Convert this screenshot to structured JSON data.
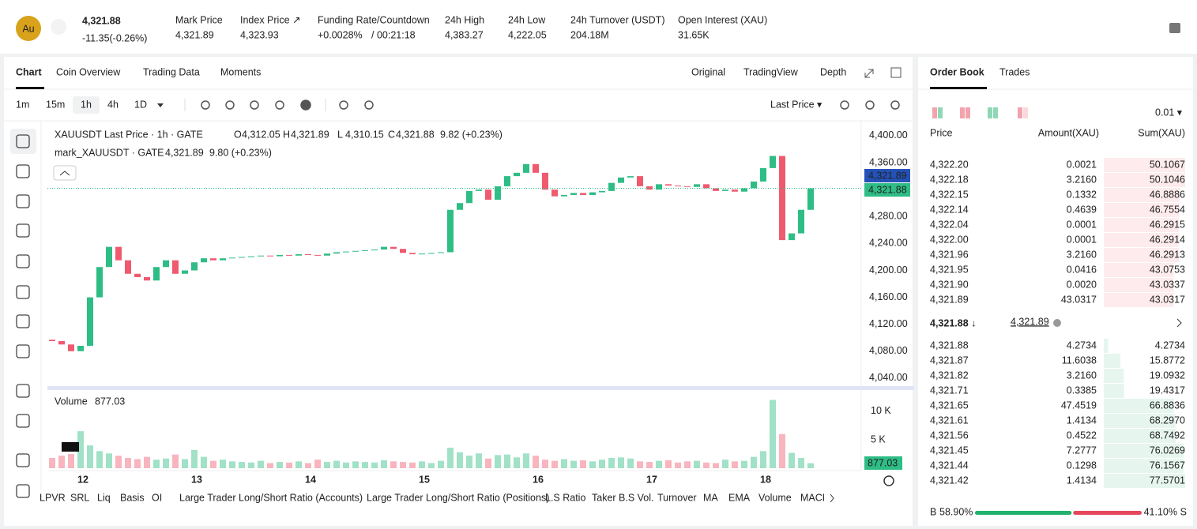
{
  "top_bar": {
    "coin_icon": "Au",
    "price": "4,321.88",
    "change": "-11.35(-0.26%)",
    "stats": [
      {
        "label": "Mark Price",
        "value": "4,321.89"
      },
      {
        "label": "Index Price ↗",
        "value": "4,323.93"
      },
      {
        "label": "Funding Rate/Countdown",
        "value": "+0.0028%",
        "extra": "/ 00:21:18"
      },
      {
        "label": "24h High",
        "value": "4,383.27"
      },
      {
        "label": "24h Low",
        "value": "4,222.05"
      },
      {
        "label": "24h Turnover (USDT)",
        "value": "204.18M"
      },
      {
        "label": "Open Interest (XAU)",
        "value": "31.65K"
      }
    ]
  },
  "chart_tabs": [
    "Chart",
    "Coin Overview",
    "Trading Data",
    "Moments"
  ],
  "chart_views": [
    "Original",
    "TradingView",
    "Depth"
  ],
  "intervals": [
    "1m",
    "15m",
    "1h",
    "4h",
    "1D"
  ],
  "price_source": "Last Price ▾",
  "legend": {
    "title": "XAUUSDT Last Price · 1h · GATE",
    "ohlc": [
      {
        "label": "O",
        "value": "4,312.05"
      },
      {
        "label": "H",
        "value": "4,321.89"
      },
      {
        "label": "L",
        "value": "4,310.15"
      },
      {
        "label": "C",
        "value": "4,321.88"
      }
    ],
    "change": "9.82 (+0.23%)",
    "mark_name": "mark_XAUUSDT · GATE",
    "mark_value": "4,321.89",
    "mark_change": "9.80 (+0.23%)",
    "volume_name": "Volume",
    "volume_value": "877.03"
  },
  "price_tags": {
    "mark": "4,321.89",
    "last": "4,321.88",
    "volume": "877.03"
  },
  "chart_data": {
    "type": "candlestick",
    "x_labels": [
      "12",
      "13",
      "14",
      "15",
      "16",
      "17",
      "18"
    ],
    "open": 4097,
    "close": [
      4095,
      4090,
      4080,
      4088,
      4160,
      4205,
      4235,
      4215,
      4195,
      4190,
      4185,
      4205,
      4215,
      4195,
      4200,
      4212,
      4218,
      4215,
      4218,
      4219,
      4220,
      4221,
      4222,
      4221,
      4223,
      4222,
      4224,
      4223,
      4222,
      4225,
      4227,
      4228,
      4229,
      4230,
      4231,
      4235,
      4232,
      4226,
      4224,
      4225,
      4226,
      4227,
      4290,
      4300,
      4318,
      4320,
      4305,
      4325,
      4340,
      4345,
      4358,
      4345,
      4320,
      4310,
      4312,
      4315,
      4312,
      4316,
      4318,
      4330,
      4338,
      4340,
      4325,
      4320,
      4328,
      4326,
      4325,
      4324,
      4328,
      4322,
      4318,
      4320,
      4317,
      4322,
      4332,
      4352,
      4370,
      4245,
      4255,
      4290,
      4321.88
    ],
    "volume": [
      1800,
      2200,
      2500,
      6500,
      4000,
      3000,
      2600,
      2200,
      1800,
      1600,
      2000,
      1500,
      1700,
      2400,
      1600,
      3200,
      2000,
      1300,
      1500,
      1200,
      1100,
      1000,
      1300,
      900,
      1100,
      1000,
      1200,
      900,
      1500,
      1100,
      1300,
      1000,
      1200,
      1100,
      1000,
      1400,
      1200,
      1100,
      1000,
      1200,
      900,
      1300,
      3600,
      2800,
      2200,
      2600,
      1700,
      2300,
      2400,
      1900,
      2600,
      2200,
      1500,
      1300,
      1600,
      1300,
      1400,
      1200,
      1500,
      1800,
      1900,
      1700,
      1200,
      1100,
      1300,
      1400,
      1000,
      1200,
      1300,
      1000,
      900,
      1500,
      1200,
      1300,
      2000,
      3000,
      12000,
      6000,
      2700,
      1800,
      877.03
    ],
    "ylim": [
      4027,
      4414
    ],
    "yticks": [
      {
        "value": 4400,
        "label": "4,400.00"
      },
      {
        "value": 4360,
        "label": "4,360.00"
      },
      {
        "value": 4320,
        "label": "4,320.00"
      },
      {
        "value": 4280,
        "label": "4,280.00"
      },
      {
        "value": 4240,
        "label": "4,240.00"
      },
      {
        "value": 4200,
        "label": "4,200.00"
      },
      {
        "value": 4160,
        "label": "4,160.00"
      },
      {
        "value": 4120,
        "label": "4,120.00"
      },
      {
        "value": 4080,
        "label": "4,080.00"
      },
      {
        "value": 4040,
        "label": "4,040.00"
      }
    ],
    "volume_ylim": [
      0,
      12900
    ],
    "volume_yticks": [
      {
        "value": 10000,
        "label": "10 K"
      },
      {
        "value": 5000,
        "label": "5 K"
      }
    ],
    "up_color": "#2ebd85",
    "down_color": "#ef5a6f"
  },
  "indicators": [
    "LPVR",
    "SRL",
    "Liq",
    "Basis",
    "OI",
    "Large Trader Long/Short Ratio (Accounts)",
    "Large Trader Long/Short Ratio (Positions)",
    "L.S Ratio",
    "Taker B.S Vol.",
    "Turnover",
    "MA",
    "EMA",
    "Volume",
    "MACD"
  ],
  "order_book": {
    "tabs": [
      "Order Book",
      "Trades"
    ],
    "precision": "0.01 ▾",
    "headers": [
      "Price",
      "Amount(XAU)",
      "Sum(XAU)"
    ],
    "asks": [
      [
        "4,322.20",
        "0.0021",
        "50.1067"
      ],
      [
        "4,322.18",
        "3.2160",
        "50.1046"
      ],
      [
        "4,322.15",
        "0.1332",
        "46.8886"
      ],
      [
        "4,322.14",
        "0.4639",
        "46.7554"
      ],
      [
        "4,322.04",
        "0.0001",
        "46.2915"
      ],
      [
        "4,322.00",
        "0.0001",
        "46.2914"
      ],
      [
        "4,321.96",
        "3.2160",
        "46.2913"
      ],
      [
        "4,321.95",
        "0.0416",
        "43.0753"
      ],
      [
        "4,321.90",
        "0.0020",
        "43.0337"
      ],
      [
        "4,321.89",
        "43.0317",
        "43.0317"
      ]
    ],
    "last_price": "4,321.88 ↓",
    "mark_price": "4,321.89",
    "bids": [
      [
        "4,321.88",
        "4.2734",
        "4.2734"
      ],
      [
        "4,321.87",
        "11.6038",
        "15.8772"
      ],
      [
        "4,321.82",
        "3.2160",
        "19.0932"
      ],
      [
        "4,321.71",
        "0.3385",
        "19.4317"
      ],
      [
        "4,321.65",
        "47.4519",
        "66.8836"
      ],
      [
        "4,321.61",
        "1.4134",
        "68.2970"
      ],
      [
        "4,321.56",
        "0.4522",
        "68.7492"
      ],
      [
        "4,321.45",
        "7.2777",
        "76.0269"
      ],
      [
        "4,321.44",
        "0.1298",
        "76.1567"
      ],
      [
        "4,321.42",
        "1.4134",
        "77.5701"
      ]
    ],
    "buy_label": "B",
    "buy_ratio": "58.90%",
    "sell_ratio": "41.10%",
    "sell_label": "S"
  }
}
